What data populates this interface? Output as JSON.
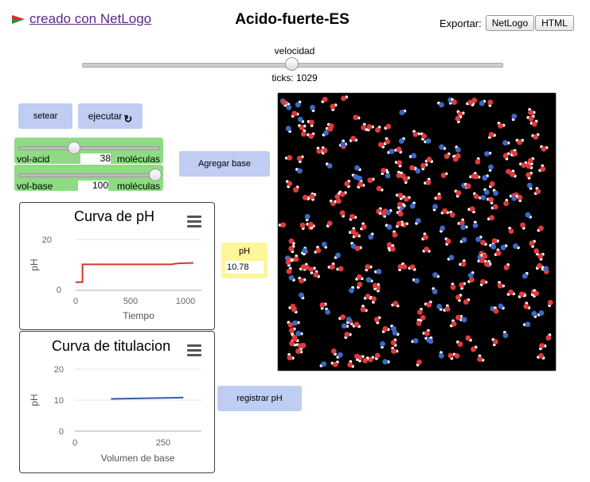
{
  "header": {
    "credit_text": "creado con NetLogo",
    "title": "Acido-fuerte-ES",
    "export_label": "Exportar:",
    "export_buttons": [
      "NetLogo",
      "HTML"
    ]
  },
  "speed": {
    "label": "velocidad",
    "value_fraction": 0.5
  },
  "ticks": {
    "text": "ticks: 1029"
  },
  "buttons": {
    "setup": "setear",
    "go": "ejecutar",
    "go_loop_icon": "forever-arrow-icon",
    "add_base": "Agregar base",
    "record_ph": "registrar pH"
  },
  "sliders": {
    "vol_acid": {
      "label": "vol-acid",
      "value": "38",
      "unit": "moléculas",
      "fraction": 0.38
    },
    "vol_base": {
      "label": "vol-base",
      "value": "100",
      "unit": "moléculas",
      "fraction": 1.0
    }
  },
  "monitor": {
    "label": "pH",
    "value": "10.78"
  },
  "plots": {
    "ph_curve": {
      "title": "Curva de pH",
      "xlabel": "Tiempo",
      "ylabel": "pH",
      "xticks": [
        "0",
        "500",
        "1000"
      ],
      "yticks": [
        "0",
        "20"
      ]
    },
    "titration": {
      "title": "Curva de titulacion",
      "xlabel": "Volumen de base",
      "ylabel": "pH",
      "xticks": [
        "0",
        "250"
      ],
      "yticks": [
        "0",
        "10",
        "20"
      ]
    }
  },
  "chart_data": [
    {
      "type": "line",
      "title": "Curva de pH",
      "xlabel": "Tiempo",
      "ylabel": "pH",
      "xlim": [
        0,
        1100
      ],
      "ylim": [
        0,
        20
      ],
      "series": [
        {
          "color": "#d9372b",
          "x": [
            0,
            60,
            60,
            80,
            840,
            860,
            900,
            1029
          ],
          "y": [
            3.2,
            3.2,
            10.2,
            10.2,
            10.2,
            10.4,
            10.6,
            10.78
          ]
        }
      ]
    },
    {
      "type": "line",
      "title": "Curva de titulacion",
      "xlabel": "Volumen de base",
      "ylabel": "pH",
      "xlim": [
        0,
        350
      ],
      "ylim": [
        0,
        20
      ],
      "series": [
        {
          "color": "#3a5ca8",
          "x": [
            100,
            300
          ],
          "y": [
            10.4,
            10.8
          ]
        }
      ]
    }
  ],
  "world": {
    "background": "#000000",
    "colors": {
      "hydrogen": "#ffffff",
      "acid_oxygen": "#e03a3a",
      "base_oxygen": "#3d68c4"
    },
    "counts": {
      "red": 230,
      "blue": 95
    }
  }
}
